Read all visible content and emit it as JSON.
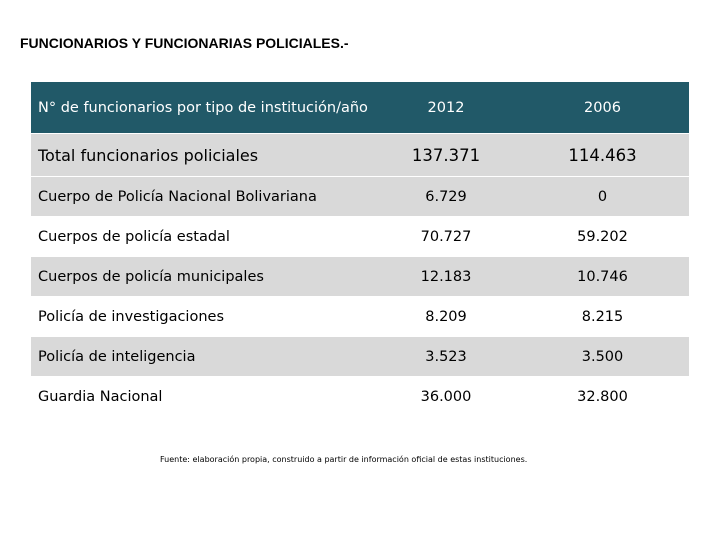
{
  "page": {
    "title": "FUNCIONARIOS Y FUNCIONARIAS POLICIALES.-"
  },
  "table": {
    "header": {
      "label": "N° de funcionarios por tipo de institución/año",
      "col_2012": "2012",
      "col_2006": "2006"
    },
    "total": {
      "label": "Total funcionarios policiales",
      "v2012": "137.371",
      "v2006": "114.463"
    },
    "rows": [
      {
        "label": "Cuerpo de Policía Nacional Bolivariana",
        "v2012": "6.729",
        "v2006": "0"
      },
      {
        "label": "Cuerpos de policía estadal",
        "v2012": "70.727",
        "v2006": "59.202"
      },
      {
        "label": "Cuerpos de policía municipales",
        "v2012": "12.183",
        "v2006": "10.746"
      },
      {
        "label": "Policía de investigaciones",
        "v2012": "8.209",
        "v2006": "8.215"
      },
      {
        "label": "Policía de inteligencia",
        "v2012": "3.523",
        "v2006": "3.500"
      },
      {
        "label": "Guardia Nacional",
        "v2012": "36.000",
        "v2006": "32.800"
      }
    ]
  },
  "footnote": "Fuente: elaboración propia, construido a partir de información oficial de estas instituciones."
}
